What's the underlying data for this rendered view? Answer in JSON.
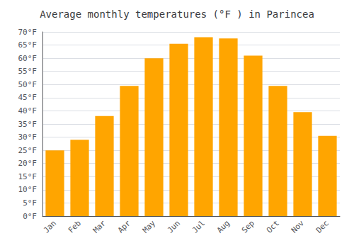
{
  "chart_data": {
    "type": "bar",
    "title": "Average monthly temperatures (°F ) in Parincea",
    "categories": [
      "Jan",
      "Feb",
      "Mar",
      "Apr",
      "May",
      "Jun",
      "Jul",
      "Aug",
      "Sep",
      "Oct",
      "Nov",
      "Dec"
    ],
    "values": [
      25,
      29,
      38,
      49.5,
      60,
      65.5,
      68,
      67.5,
      61,
      49.5,
      39.5,
      30.5
    ],
    "color": "#FFA500",
    "ylim": [
      0,
      70
    ],
    "yticks": [
      {
        "value": 0,
        "label": "0°F"
      },
      {
        "value": 5,
        "label": "5°F"
      },
      {
        "value": 10,
        "label": "10°F"
      },
      {
        "value": 15,
        "label": "15°F"
      },
      {
        "value": 20,
        "label": "20°F"
      },
      {
        "value": 25,
        "label": "25°F"
      },
      {
        "value": 30,
        "label": "30°F"
      },
      {
        "value": 35,
        "label": "35°F"
      },
      {
        "value": 40,
        "label": "40°F"
      },
      {
        "value": 45,
        "label": "45°F"
      },
      {
        "value": 50,
        "label": "50°F"
      },
      {
        "value": 55,
        "label": "55°F"
      },
      {
        "value": 60,
        "label": "60°F"
      },
      {
        "value": 65,
        "label": "65°F"
      },
      {
        "value": 70,
        "label": "70°F"
      }
    ],
    "grid": true
  }
}
